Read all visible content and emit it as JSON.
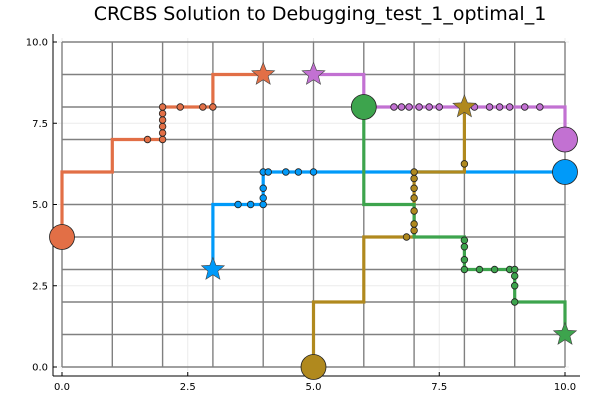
{
  "chart_data": {
    "type": "line",
    "title": "CRCBS Solution to Debugging_test_1_optimal_1",
    "xlabel": "",
    "ylabel": "",
    "xlim": [
      0,
      10
    ],
    "ylim": [
      0,
      10
    ],
    "x_ticks": [
      "0.0",
      "2.5",
      "5.0",
      "7.5",
      "10.0"
    ],
    "y_ticks": [
      "0.0",
      "2.5",
      "5.0",
      "7.5",
      "10.0"
    ],
    "grid": true,
    "legend": "none",
    "colors": {
      "grid_dark": "#808080",
      "grid_light": "#ebebeb",
      "orange": "#e26f46",
      "blue": "#009af9",
      "gold": "#b0891e",
      "green": "#3da44d",
      "purple": "#c271d2"
    },
    "series": [
      {
        "color": "#e26f46",
        "path": [
          [
            0,
            4
          ],
          [
            0,
            6
          ],
          [
            1,
            6
          ],
          [
            1,
            7
          ],
          [
            2,
            7
          ],
          [
            2,
            8
          ],
          [
            3,
            8
          ],
          [
            3,
            9
          ],
          [
            4,
            9
          ]
        ],
        "start": [
          0,
          4
        ],
        "goal": [
          4,
          9
        ],
        "points": [
          [
            1.7,
            7
          ],
          [
            2,
            7
          ],
          [
            2,
            7.2
          ],
          [
            2,
            7.4
          ],
          [
            2,
            7.6
          ],
          [
            2,
            7.8
          ],
          [
            2,
            8
          ],
          [
            2.35,
            8
          ],
          [
            2.8,
            8
          ],
          [
            3,
            8
          ]
        ]
      },
      {
        "color": "#009af9",
        "path": [
          [
            3,
            3
          ],
          [
            3,
            5
          ],
          [
            4,
            5
          ],
          [
            4,
            6
          ],
          [
            10,
            6
          ]
        ],
        "start": [
          10,
          6
        ],
        "goal": [
          3,
          3
        ],
        "points": [
          [
            3.5,
            5
          ],
          [
            3.75,
            5
          ],
          [
            4,
            5
          ],
          [
            4,
            5.2
          ],
          [
            4,
            5.5
          ],
          [
            4,
            6
          ],
          [
            4.1,
            6
          ],
          [
            4.45,
            6
          ],
          [
            4.7,
            6
          ],
          [
            5,
            6
          ]
        ]
      },
      {
        "color": "#b0891e",
        "path": [
          [
            5,
            0
          ],
          [
            5,
            2
          ],
          [
            6,
            2
          ],
          [
            6,
            4
          ],
          [
            7,
            4
          ],
          [
            7,
            6
          ],
          [
            8,
            6
          ],
          [
            8,
            8
          ]
        ],
        "start": [
          5,
          0
        ],
        "goal": [
          8,
          8
        ],
        "points": [
          [
            6.85,
            4
          ],
          [
            7,
            4.2
          ],
          [
            7,
            4.4
          ],
          [
            7,
            4.8
          ],
          [
            7,
            5.2
          ],
          [
            7,
            5.5
          ],
          [
            7,
            5.8
          ],
          [
            7,
            6
          ],
          [
            8,
            6.25
          ]
        ]
      },
      {
        "color": "#3da44d",
        "path": [
          [
            6,
            8
          ],
          [
            6,
            5
          ],
          [
            7,
            5
          ],
          [
            7,
            4
          ],
          [
            8,
            4
          ],
          [
            8,
            3
          ],
          [
            9,
            3
          ],
          [
            9,
            2
          ],
          [
            10,
            2
          ],
          [
            10,
            1
          ]
        ],
        "start": [
          6,
          8
        ],
        "goal": [
          10,
          1
        ],
        "points": [
          [
            8,
            3.9
          ],
          [
            8,
            3.7
          ],
          [
            8,
            3.3
          ],
          [
            8,
            3
          ],
          [
            8.3,
            3
          ],
          [
            8.6,
            3
          ],
          [
            8.9,
            3
          ],
          [
            9,
            3
          ],
          [
            9,
            2.8
          ],
          [
            9,
            2.5
          ],
          [
            9,
            2
          ]
        ]
      },
      {
        "color": "#c271d2",
        "path": [
          [
            5,
            9
          ],
          [
            6,
            9
          ],
          [
            6,
            8
          ],
          [
            10,
            8
          ],
          [
            10,
            7
          ]
        ],
        "start": [
          10,
          7
        ],
        "goal": [
          5,
          9
        ],
        "points": [
          [
            6,
            8
          ],
          [
            6.6,
            8
          ],
          [
            6.75,
            8
          ],
          [
            6.9,
            8
          ],
          [
            7.1,
            8
          ],
          [
            7.3,
            8
          ],
          [
            7.5,
            8
          ],
          [
            8,
            8
          ],
          [
            8.2,
            8
          ],
          [
            8.5,
            8
          ],
          [
            8.7,
            8
          ],
          [
            8.9,
            8
          ],
          [
            9.2,
            8
          ],
          [
            9.5,
            8
          ]
        ]
      }
    ]
  }
}
